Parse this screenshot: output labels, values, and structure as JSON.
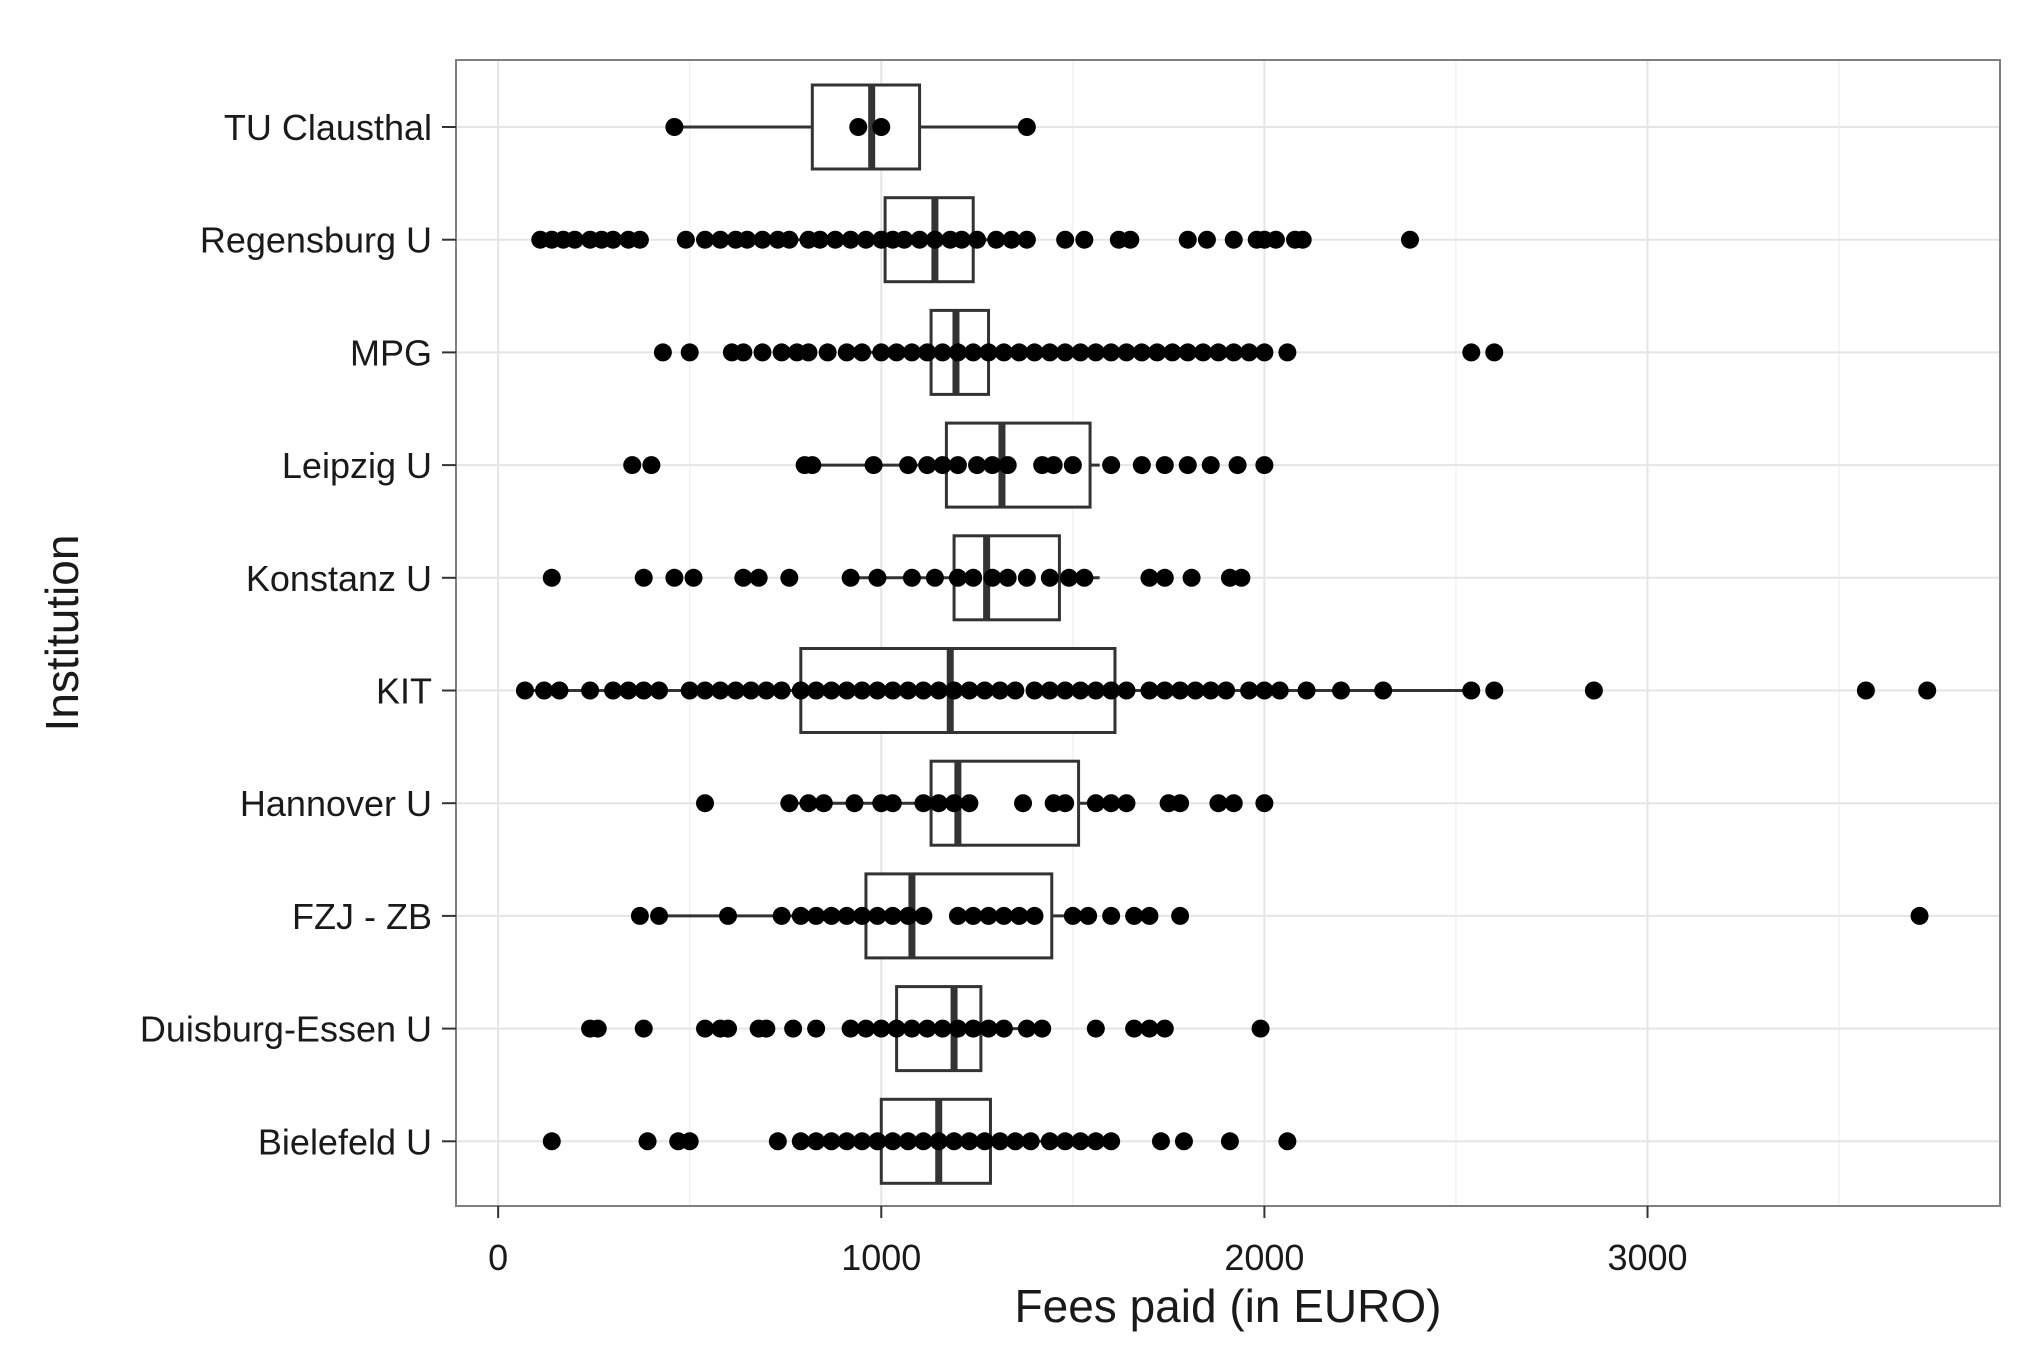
{
  "chart_data": {
    "type": "boxplot",
    "orientation": "horizontal",
    "xlabel": "Fees paid (in EURO)",
    "ylabel": "Institution",
    "xlim": [
      -110,
      3920
    ],
    "x_ticks": [
      0,
      1000,
      2000,
      3000
    ],
    "x_tick_labels": [
      "0",
      "1000",
      "2000",
      "3000"
    ],
    "grid": true,
    "categories": [
      "TU Clausthal",
      "Regensburg U",
      "MPG",
      "Leipzig U",
      "Konstanz U",
      "KIT",
      "Hannover U",
      "FZJ - ZB",
      "Duisburg-Essen U",
      "Bielefeld U"
    ],
    "boxes": [
      {
        "name": "TU Clausthal",
        "whisker_low": 460,
        "q1": 820,
        "median": 975,
        "q3": 1100,
        "whisker_high": 1380
      },
      {
        "name": "Regensburg U",
        "whisker_low": 730,
        "q1": 1010,
        "median": 1140,
        "q3": 1240,
        "whisker_high": 1400
      },
      {
        "name": "MPG",
        "whisker_low": 900,
        "q1": 1130,
        "median": 1195,
        "q3": 1280,
        "whisker_high": 1510
      },
      {
        "name": "Leipzig U",
        "whisker_low": 790,
        "q1": 1170,
        "median": 1315,
        "q3": 1545,
        "whisker_high": 1570
      },
      {
        "name": "Konstanz U",
        "whisker_low": 930,
        "q1": 1190,
        "median": 1275,
        "q3": 1465,
        "whisker_high": 1570
      },
      {
        "name": "KIT",
        "whisker_low": 60,
        "q1": 790,
        "median": 1180,
        "q3": 1610,
        "whisker_high": 2550
      },
      {
        "name": "Hannover U",
        "whisker_low": 760,
        "q1": 1130,
        "median": 1200,
        "q3": 1515,
        "whisker_high": 1640
      },
      {
        "name": "FZJ - ZB",
        "whisker_low": 420,
        "q1": 960,
        "median": 1080,
        "q3": 1445,
        "whisker_high": 1560
      },
      {
        "name": "Duisburg-Essen U",
        "whisker_low": 930,
        "q1": 1040,
        "median": 1190,
        "q3": 1260,
        "whisker_high": 1420
      },
      {
        "name": "Bielefeld U",
        "whisker_low": 780,
        "q1": 1000,
        "median": 1150,
        "q3": 1285,
        "whisker_high": 1440
      }
    ],
    "points": [
      [
        460,
        940,
        1000,
        1380
      ],
      [
        110,
        140,
        170,
        200,
        240,
        270,
        300,
        340,
        370,
        490,
        540,
        580,
        620,
        650,
        690,
        730,
        760,
        810,
        840,
        880,
        920,
        960,
        1000,
        1030,
        1060,
        1100,
        1140,
        1180,
        1210,
        1250,
        1300,
        1340,
        1380,
        1480,
        1530,
        1620,
        1650,
        1800,
        1850,
        1920,
        1980,
        2000,
        2030,
        2080,
        2100,
        2380
      ],
      [
        430,
        500,
        610,
        640,
        690,
        740,
        780,
        810,
        860,
        910,
        950,
        1000,
        1040,
        1080,
        1120,
        1160,
        1200,
        1240,
        1280,
        1320,
        1360,
        1400,
        1440,
        1480,
        1520,
        1560,
        1600,
        1640,
        1680,
        1720,
        1760,
        1800,
        1840,
        1880,
        1920,
        1960,
        2000,
        2060,
        2540,
        2600
      ],
      [
        350,
        400,
        800,
        820,
        980,
        1070,
        1120,
        1160,
        1200,
        1250,
        1290,
        1330,
        1420,
        1450,
        1500,
        1600,
        1680,
        1740,
        1800,
        1860,
        1930,
        2000
      ],
      [
        140,
        380,
        460,
        510,
        640,
        680,
        760,
        920,
        990,
        1080,
        1140,
        1200,
        1240,
        1290,
        1330,
        1380,
        1440,
        1490,
        1530,
        1700,
        1740,
        1810,
        1910,
        1940
      ],
      [
        70,
        120,
        160,
        240,
        300,
        340,
        380,
        420,
        500,
        540,
        580,
        620,
        660,
        700,
        740,
        790,
        830,
        870,
        910,
        950,
        990,
        1030,
        1070,
        1110,
        1150,
        1190,
        1230,
        1270,
        1310,
        1350,
        1400,
        1440,
        1480,
        1520,
        1560,
        1600,
        1640,
        1700,
        1740,
        1780,
        1820,
        1860,
        1900,
        1960,
        2000,
        2040,
        2110,
        2200,
        2310,
        2540,
        2600,
        2860,
        3570,
        3730
      ],
      [
        540,
        760,
        810,
        850,
        930,
        1000,
        1030,
        1110,
        1150,
        1190,
        1230,
        1370,
        1450,
        1480,
        1560,
        1600,
        1640,
        1750,
        1780,
        1880,
        1920,
        2000
      ],
      [
        370,
        420,
        600,
        740,
        790,
        830,
        870,
        910,
        950,
        990,
        1030,
        1070,
        1110,
        1200,
        1240,
        1280,
        1320,
        1360,
        1400,
        1500,
        1540,
        1600,
        1660,
        1700,
        1780,
        3710
      ],
      [
        240,
        260,
        380,
        540,
        580,
        600,
        680,
        700,
        770,
        830,
        920,
        960,
        1000,
        1040,
        1080,
        1120,
        1160,
        1200,
        1240,
        1280,
        1320,
        1380,
        1420,
        1560,
        1660,
        1700,
        1740,
        1990
      ],
      [
        140,
        390,
        470,
        500,
        730,
        790,
        830,
        870,
        910,
        950,
        990,
        1030,
        1070,
        1110,
        1150,
        1190,
        1230,
        1270,
        1310,
        1350,
        1390,
        1440,
        1480,
        1520,
        1560,
        1600,
        1730,
        1790,
        1910,
        2060
      ]
    ]
  }
}
